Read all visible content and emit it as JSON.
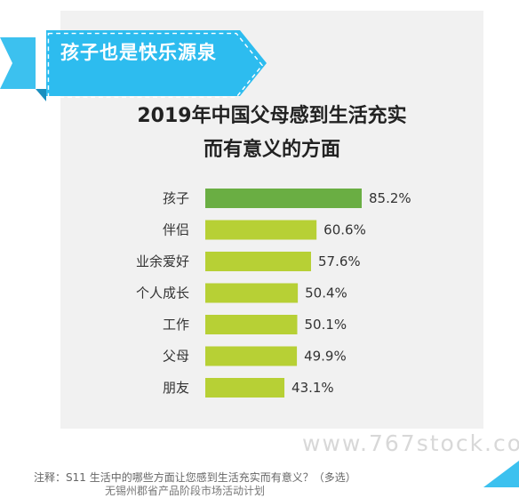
{
  "banner": {
    "text": "孩子也是快乐源泉"
  },
  "chart_data": {
    "type": "bar",
    "orientation": "horizontal",
    "title_lines": [
      "2019年中国父母感到生活充实",
      "而有意义的方面"
    ],
    "categories": [
      "孩子",
      "伴侣",
      "业余爱好",
      "个人成长",
      "工作",
      "父母",
      "朋友"
    ],
    "values": [
      85.2,
      60.6,
      57.6,
      50.4,
      50.1,
      49.9,
      43.1
    ],
    "value_labels": [
      "85.2%",
      "60.6%",
      "57.6%",
      "50.4%",
      "50.1%",
      "49.9%",
      "43.1%"
    ],
    "unit": "%",
    "highlight_index": 0,
    "colors": {
      "highlight": "#6aae43",
      "default": "#b7d035"
    },
    "grid": false,
    "legend": "none"
  },
  "watermark": "www.767stock.co",
  "note": "注释：S11 生活中的哪些方面让您感到生活充实而有意义？（多选）",
  "note2": "无锡州郡省产品阶段市场活动计划"
}
